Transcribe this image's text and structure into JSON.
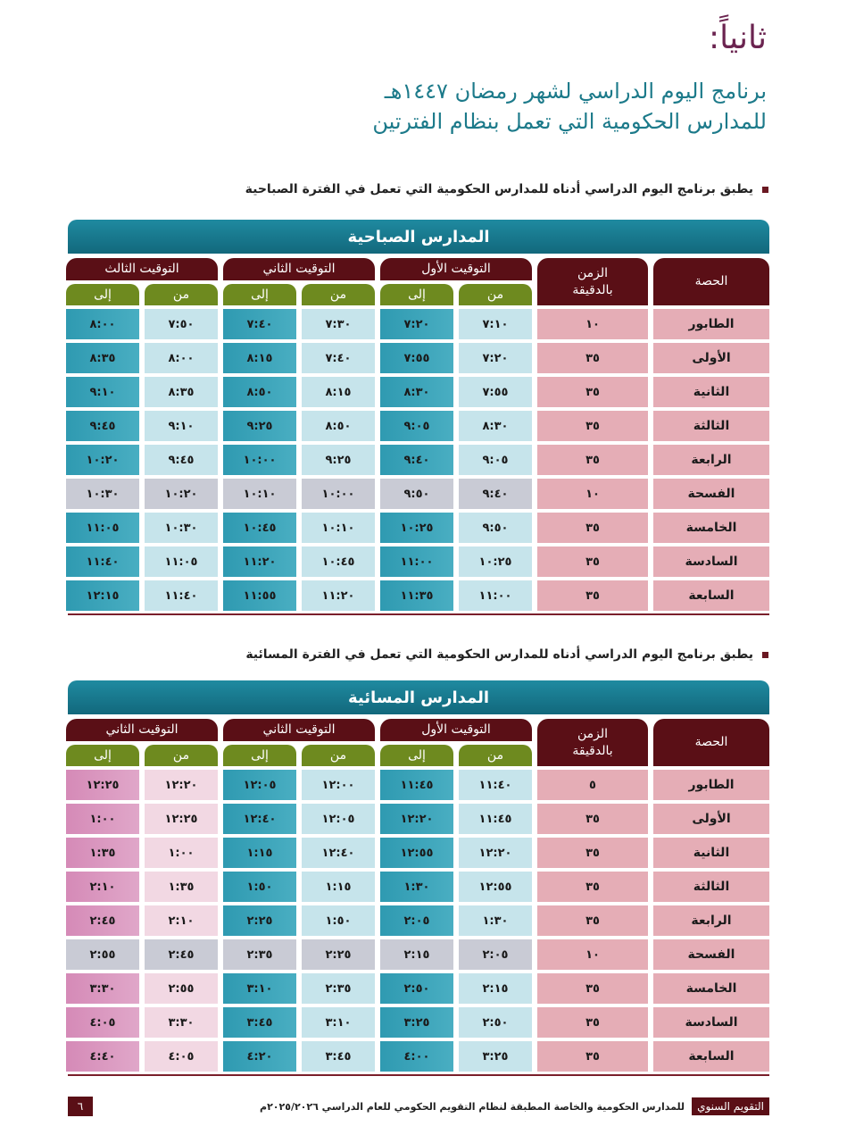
{
  "title": "ثانياً:",
  "heading_line1": "برنامج اليوم الدراسي لشهر رمضان ١٤٤٧هـ",
  "heading_line2": "للمدارس الحكومية التي تعمل بنظام الفترتين",
  "colors": {
    "maroon": "#5a0f16",
    "teal": "#1c7a8a",
    "olive": "#6e8a1f",
    "cell_light": "#c6e4eb",
    "cell_teal": "#3aa3b8",
    "break_grey": "#c9cbd5",
    "period_pink": "#e5adb6",
    "pink_light": "#f2d8e3",
    "pink": "#d895bd"
  },
  "tables": [
    {
      "bullet": "يطبق برنامج اليوم الدراسي أدناه للمدارس الحكومية التي تعمل في الفترة الصباحية",
      "title": "المدارس الصباحية",
      "period_header": "الحصة",
      "minutes_header": "الزمن\nبالدقيقة",
      "groups": [
        "التوقيت الأول",
        "التوقيت الثاني",
        "التوقيت الثالث"
      ],
      "from_label": "من",
      "to_label": "إلى",
      "rows": [
        {
          "period": "الطابور",
          "minutes": "١٠",
          "times": [
            "٧:١٠",
            "٧:٢٠",
            "٧:٣٠",
            "٧:٤٠",
            "٧:٥٠",
            "٨:٠٠"
          ]
        },
        {
          "period": "الأولى",
          "minutes": "٣٥",
          "times": [
            "٧:٢٠",
            "٧:٥٥",
            "٧:٤٠",
            "٨:١٥",
            "٨:٠٠",
            "٨:٣٥"
          ]
        },
        {
          "period": "الثانية",
          "minutes": "٣٥",
          "times": [
            "٧:٥٥",
            "٨:٣٠",
            "٨:١٥",
            "٨:٥٠",
            "٨:٣٥",
            "٩:١٠"
          ]
        },
        {
          "period": "الثالثة",
          "minutes": "٣٥",
          "times": [
            "٨:٣٠",
            "٩:٠٥",
            "٨:٥٠",
            "٩:٢٥",
            "٩:١٠",
            "٩:٤٥"
          ]
        },
        {
          "period": "الرابعة",
          "minutes": "٣٥",
          "times": [
            "٩:٠٥",
            "٩:٤٠",
            "٩:٢٥",
            "١٠:٠٠",
            "٩:٤٥",
            "١٠:٢٠"
          ]
        },
        {
          "period": "الفسحة",
          "minutes": "١٠",
          "break": true,
          "times": [
            "٩:٤٠",
            "٩:٥٠",
            "١٠:٠٠",
            "١٠:١٠",
            "١٠:٢٠",
            "١٠:٣٠"
          ]
        },
        {
          "period": "الخامسة",
          "minutes": "٣٥",
          "times": [
            "٩:٥٠",
            "١٠:٢٥",
            "١٠:١٠",
            "١٠:٤٥",
            "١٠:٣٠",
            "١١:٠٥"
          ]
        },
        {
          "period": "السادسة",
          "minutes": "٣٥",
          "times": [
            "١٠:٢٥",
            "١١:٠٠",
            "١٠:٤٥",
            "١١:٢٠",
            "١١:٠٥",
            "١١:٤٠"
          ]
        },
        {
          "period": "السابعة",
          "minutes": "٣٥",
          "times": [
            "١١:٠٠",
            "١١:٣٥",
            "١١:٢٠",
            "١١:٥٥",
            "١١:٤٠",
            "١٢:١٥"
          ]
        }
      ]
    },
    {
      "bullet": "يطبق برنامج اليوم الدراسي أدناه للمدارس الحكومية التي تعمل في الفترة المسائية",
      "title": "المدارس المسائية",
      "period_header": "الحصة",
      "minutes_header": "الزمن\nبالدقيقة",
      "groups": [
        "التوقيت الأول",
        "التوقيت الثاني",
        "التوقيت الثاني"
      ],
      "from_label": "من",
      "to_label": "إلى",
      "pink_group": 2,
      "rows": [
        {
          "period": "الطابور",
          "minutes": "٥",
          "times": [
            "١١:٤٠",
            "١١:٤٥",
            "١٢:٠٠",
            "١٢:٠٥",
            "١٢:٢٠",
            "١٢:٢٥"
          ]
        },
        {
          "period": "الأولى",
          "minutes": "٣٥",
          "times": [
            "١١:٤٥",
            "١٢:٢٠",
            "١٢:٠٥",
            "١٢:٤٠",
            "١٢:٢٥",
            "١:٠٠"
          ]
        },
        {
          "period": "الثانية",
          "minutes": "٣٥",
          "times": [
            "١٢:٢٠",
            "١٢:٥٥",
            "١٢:٤٠",
            "١:١٥",
            "١:٠٠",
            "١:٣٥"
          ]
        },
        {
          "period": "الثالثة",
          "minutes": "٣٥",
          "times": [
            "١٢:٥٥",
            "١:٣٠",
            "١:١٥",
            "١:٥٠",
            "١:٣٥",
            "٢:١٠"
          ]
        },
        {
          "period": "الرابعة",
          "minutes": "٣٥",
          "times": [
            "١:٣٠",
            "٢:٠٥",
            "١:٥٠",
            "٢:٢٥",
            "٢:١٠",
            "٢:٤٥"
          ]
        },
        {
          "period": "الفسحة",
          "minutes": "١٠",
          "break": true,
          "times": [
            "٢:٠٥",
            "٢:١٥",
            "٢:٢٥",
            "٢:٣٥",
            "٢:٤٥",
            "٢:٥٥"
          ]
        },
        {
          "period": "الخامسة",
          "minutes": "٣٥",
          "times": [
            "٢:١٥",
            "٢:٥٠",
            "٢:٣٥",
            "٣:١٠",
            "٢:٥٥",
            "٣:٣٠"
          ]
        },
        {
          "period": "السادسة",
          "minutes": "٣٥",
          "times": [
            "٢:٥٠",
            "٣:٢٥",
            "٣:١٠",
            "٣:٤٥",
            "٣:٣٠",
            "٤:٠٥"
          ]
        },
        {
          "period": "السابعة",
          "minutes": "٣٥",
          "times": [
            "٣:٢٥",
            "٤:٠٠",
            "٣:٤٥",
            "٤:٢٠",
            "٤:٠٥",
            "٤:٤٠"
          ]
        }
      ]
    }
  ],
  "footer": {
    "label": "التقويم السنوي",
    "text": "للمدارس الحكومية والخاصة المطبقة لنظام التقويم الحكومي للعام الدراسي ٢٠٢٥/٢٠٢٦م",
    "page_number": "٦"
  }
}
